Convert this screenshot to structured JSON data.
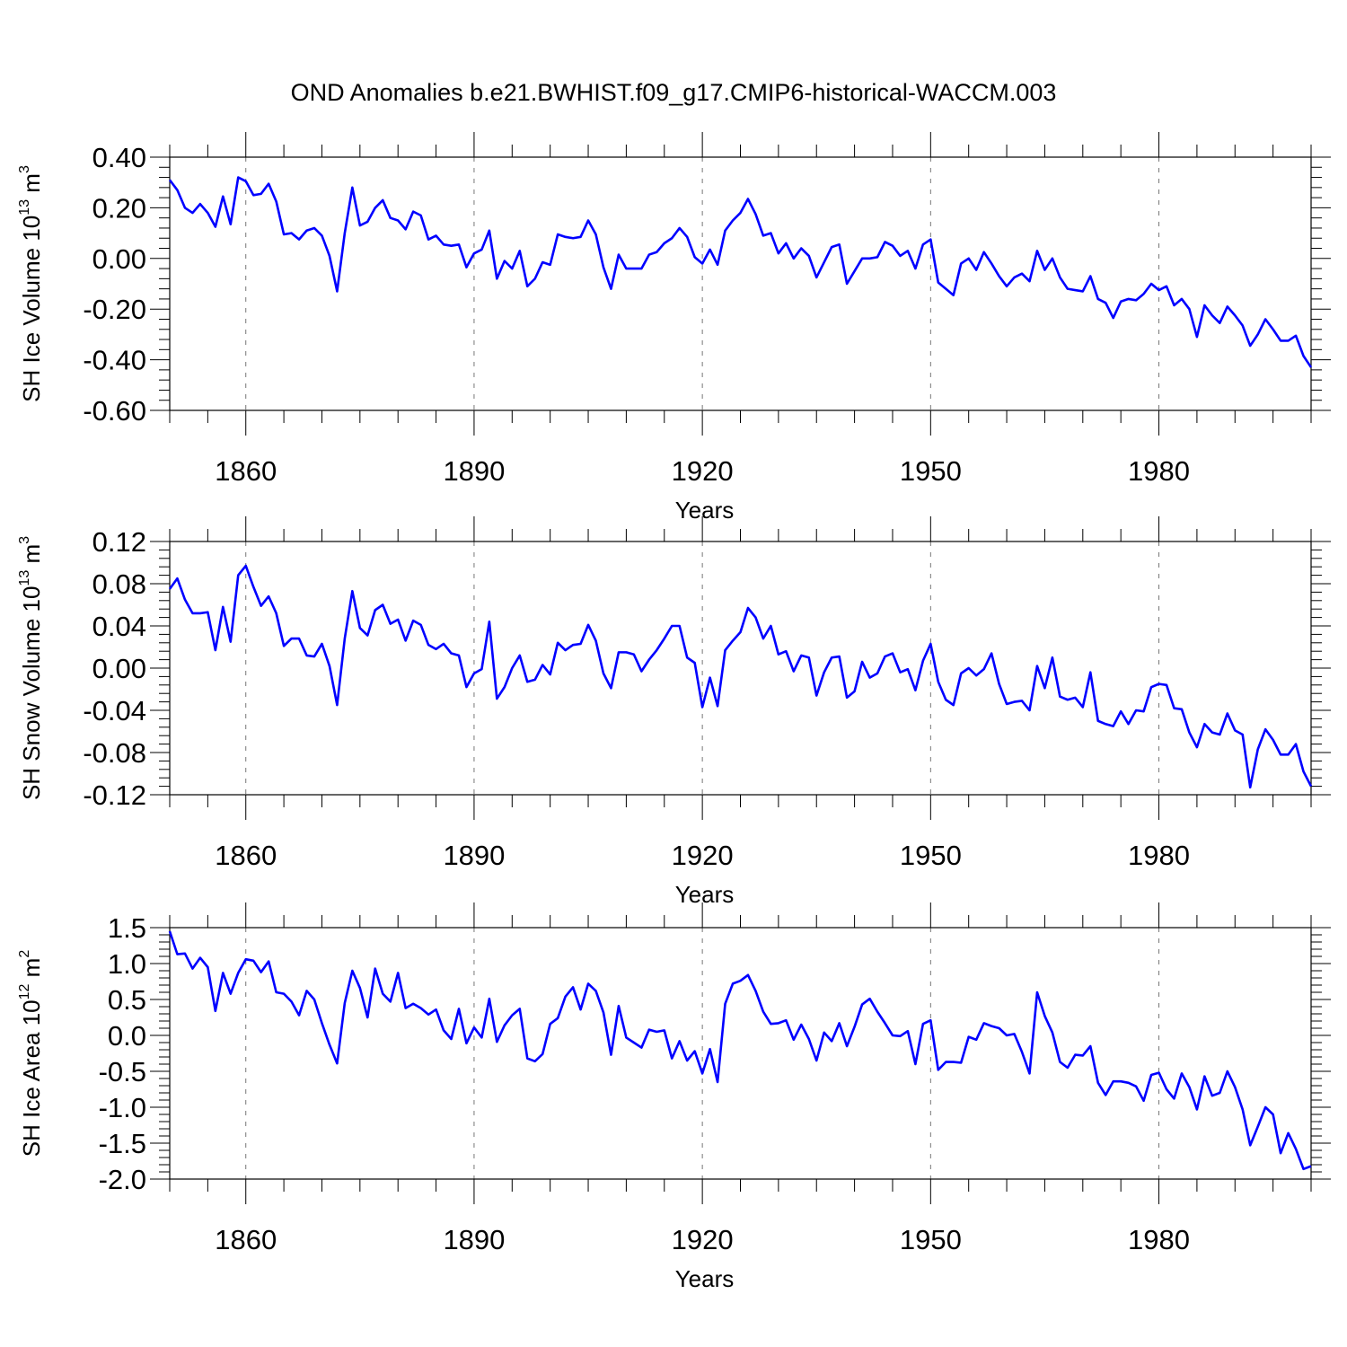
{
  "title": "OND Anomalies b.e21.BWHIST.f09_g17.CMIP6-historical-WACCM.003",
  "chart_data": [
    {
      "type": "line",
      "ylabel": {
        "text": "SH Ice Volume 10",
        "exponent": "13",
        "unit": " m",
        "unit_exponent": "3"
      },
      "xlabel": "Years",
      "xlim": [
        1850,
        2000
      ],
      "ylim": [
        -0.6,
        0.4
      ],
      "xticks": [
        1860,
        1890,
        1920,
        1950,
        1980
      ],
      "xtick_labels": [
        "1860",
        "1890",
        "1920",
        "1950",
        "1980"
      ],
      "yticks": [
        0.4,
        0.2,
        0.0,
        -0.2,
        -0.4,
        -0.6
      ],
      "ytick_labels": [
        "0.40",
        "0.20",
        "0.00",
        "-0.20",
        "-0.40",
        "-0.60"
      ],
      "grid": "dashed vertical at x ticks",
      "line_color": "#0000ff",
      "x_start": 1850,
      "values": [
        0.31,
        0.27,
        0.2,
        0.18,
        0.215,
        0.18,
        0.125,
        0.245,
        0.135,
        0.32,
        0.305,
        0.25,
        0.255,
        0.295,
        0.225,
        0.095,
        0.1,
        0.075,
        0.11,
        0.12,
        0.09,
        0.01,
        -0.13,
        0.1,
        0.28,
        0.13,
        0.145,
        0.2,
        0.23,
        0.16,
        0.15,
        0.115,
        0.185,
        0.17,
        0.075,
        0.09,
        0.055,
        0.05,
        0.055,
        -0.035,
        0.02,
        0.035,
        0.11,
        -0.08,
        -0.01,
        -0.04,
        0.03,
        -0.11,
        -0.08,
        -0.015,
        -0.025,
        0.095,
        0.085,
        0.08,
        0.085,
        0.15,
        0.095,
        -0.035,
        -0.12,
        0.015,
        -0.04,
        -0.04,
        -0.04,
        0.015,
        0.025,
        0.06,
        0.08,
        0.12,
        0.085,
        0.005,
        -0.02,
        0.035,
        -0.025,
        0.11,
        0.15,
        0.18,
        0.235,
        0.175,
        0.09,
        0.1,
        0.02,
        0.06,
        0.0,
        0.04,
        0.01,
        -0.075,
        -0.015,
        0.045,
        0.055,
        -0.1,
        -0.05,
        0.0,
        0.0,
        0.005,
        0.065,
        0.05,
        0.01,
        0.03,
        -0.04,
        0.055,
        0.075,
        -0.095,
        -0.12,
        -0.145,
        -0.02,
        0.0,
        -0.045,
        0.025,
        -0.02,
        -0.07,
        -0.11,
        -0.075,
        -0.06,
        -0.09,
        0.03,
        -0.045,
        0.0,
        -0.075,
        -0.12,
        -0.125,
        -0.13,
        -0.07,
        -0.16,
        -0.175,
        -0.235,
        -0.17,
        -0.16,
        -0.165,
        -0.14,
        -0.1,
        -0.125,
        -0.11,
        -0.185,
        -0.16,
        -0.2,
        -0.31,
        -0.185,
        -0.225,
        -0.255,
        -0.19,
        -0.225,
        -0.265,
        -0.345,
        -0.3,
        -0.24,
        -0.28,
        -0.325,
        -0.325,
        -0.305,
        -0.385,
        -0.43
      ]
    },
    {
      "type": "line",
      "ylabel": {
        "text": "SH Snow Volume 10",
        "exponent": "13",
        "unit": " m",
        "unit_exponent": "3"
      },
      "xlabel": "Years",
      "xlim": [
        1850,
        2000
      ],
      "ylim": [
        -0.12,
        0.12
      ],
      "xticks": [
        1860,
        1890,
        1920,
        1950,
        1980
      ],
      "xtick_labels": [
        "1860",
        "1890",
        "1920",
        "1950",
        "1980"
      ],
      "yticks": [
        0.12,
        0.08,
        0.04,
        0.0,
        -0.04,
        -0.08,
        -0.12
      ],
      "ytick_labels": [
        "0.12",
        "0.08",
        "0.04",
        "0.00",
        "-0.04",
        "-0.08",
        "-0.12"
      ],
      "grid": "dashed vertical at x ticks",
      "line_color": "#0000ff",
      "x_start": 1850,
      "values": [
        0.075,
        0.085,
        0.065,
        0.052,
        0.052,
        0.053,
        0.017,
        0.058,
        0.025,
        0.088,
        0.097,
        0.077,
        0.059,
        0.068,
        0.052,
        0.021,
        0.028,
        0.028,
        0.012,
        0.011,
        0.023,
        0.002,
        -0.035,
        0.028,
        0.073,
        0.038,
        0.031,
        0.055,
        0.06,
        0.042,
        0.046,
        0.026,
        0.045,
        0.041,
        0.022,
        0.018,
        0.023,
        0.014,
        0.012,
        -0.018,
        -0.005,
        -0.001,
        0.044,
        -0.029,
        -0.018,
        0.0,
        0.012,
        -0.013,
        -0.011,
        0.003,
        -0.006,
        0.024,
        0.017,
        0.022,
        0.023,
        0.041,
        0.026,
        -0.005,
        -0.019,
        0.015,
        0.015,
        0.013,
        -0.003,
        0.008,
        0.017,
        0.028,
        0.04,
        0.04,
        0.01,
        0.005,
        -0.037,
        -0.009,
        -0.036,
        0.017,
        0.026,
        0.034,
        0.057,
        0.048,
        0.028,
        0.04,
        0.013,
        0.016,
        -0.003,
        0.012,
        0.01,
        -0.026,
        -0.004,
        0.01,
        0.011,
        -0.028,
        -0.022,
        0.006,
        -0.009,
        -0.005,
        0.011,
        0.014,
        -0.004,
        -0.001,
        -0.021,
        0.007,
        0.023,
        -0.013,
        -0.03,
        -0.035,
        -0.005,
        0.0,
        -0.007,
        -0.001,
        0.014,
        -0.015,
        -0.034,
        -0.032,
        -0.031,
        -0.04,
        0.002,
        -0.019,
        0.01,
        -0.027,
        -0.03,
        -0.028,
        -0.037,
        -0.004,
        -0.05,
        -0.053,
        -0.055,
        -0.041,
        -0.053,
        -0.04,
        -0.041,
        -0.018,
        -0.015,
        -0.016,
        -0.038,
        -0.039,
        -0.061,
        -0.075,
        -0.053,
        -0.061,
        -0.063,
        -0.043,
        -0.059,
        -0.063,
        -0.113,
        -0.077,
        -0.058,
        -0.068,
        -0.082,
        -0.082,
        -0.072,
        -0.098,
        -0.112
      ]
    },
    {
      "type": "line",
      "ylabel": {
        "text": "SH Ice Area 10",
        "exponent": "12",
        "unit": " m",
        "unit_exponent": "2"
      },
      "xlabel": "Years",
      "xlim": [
        1850,
        2000
      ],
      "ylim": [
        -2.0,
        1.5
      ],
      "xticks": [
        1860,
        1890,
        1920,
        1950,
        1980
      ],
      "xtick_labels": [
        "1860",
        "1890",
        "1920",
        "1950",
        "1980"
      ],
      "yticks": [
        1.5,
        1.0,
        0.5,
        0.0,
        -0.5,
        -1.0,
        -1.5,
        -2.0
      ],
      "ytick_labels": [
        "1.5",
        "1.0",
        "0.5",
        "0.0",
        "-0.5",
        "-1.0",
        "-1.5",
        "-2.0"
      ],
      "grid": "dashed vertical at x ticks",
      "line_color": "#0000ff",
      "x_start": 1850,
      "values": [
        1.45,
        1.13,
        1.14,
        0.93,
        1.08,
        0.95,
        0.34,
        0.87,
        0.58,
        0.87,
        1.06,
        1.04,
        0.88,
        1.03,
        0.6,
        0.58,
        0.47,
        0.28,
        0.62,
        0.5,
        0.17,
        -0.13,
        -0.39,
        0.45,
        0.9,
        0.66,
        0.25,
        0.93,
        0.58,
        0.47,
        0.87,
        0.38,
        0.44,
        0.38,
        0.29,
        0.36,
        0.07,
        -0.05,
        0.37,
        -0.11,
        0.11,
        -0.03,
        0.51,
        -0.09,
        0.14,
        0.28,
        0.37,
        -0.32,
        -0.36,
        -0.26,
        0.16,
        0.24,
        0.54,
        0.67,
        0.36,
        0.72,
        0.62,
        0.32,
        -0.27,
        0.41,
        -0.03,
        -0.1,
        -0.17,
        0.08,
        0.05,
        0.07,
        -0.32,
        -0.08,
        -0.35,
        -0.22,
        -0.53,
        -0.19,
        -0.65,
        0.44,
        0.72,
        0.76,
        0.84,
        0.62,
        0.33,
        0.16,
        0.17,
        0.21,
        -0.06,
        0.15,
        -0.05,
        -0.35,
        0.04,
        -0.08,
        0.17,
        -0.15,
        0.12,
        0.43,
        0.51,
        0.33,
        0.17,
        0.0,
        -0.01,
        0.06,
        -0.4,
        0.16,
        0.21,
        -0.48,
        -0.37,
        -0.37,
        -0.38,
        -0.02,
        -0.06,
        0.17,
        0.13,
        0.1,
        0.0,
        0.02,
        -0.23,
        -0.53,
        0.6,
        0.27,
        0.04,
        -0.37,
        -0.45,
        -0.27,
        -0.28,
        -0.15,
        -0.66,
        -0.83,
        -0.64,
        -0.64,
        -0.66,
        -0.71,
        -0.91,
        -0.55,
        -0.52,
        -0.75,
        -0.88,
        -0.53,
        -0.72,
        -1.03,
        -0.57,
        -0.84,
        -0.8,
        -0.5,
        -0.72,
        -1.03,
        -1.53,
        -1.27,
        -1.0,
        -1.1,
        -1.64,
        -1.36,
        -1.58,
        -1.86,
        -1.82
      ]
    }
  ]
}
